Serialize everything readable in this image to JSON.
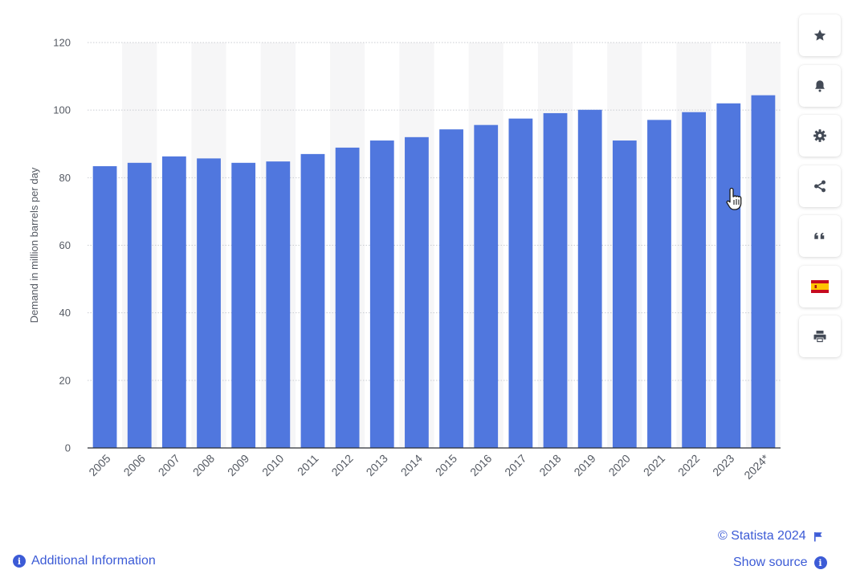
{
  "chart_data": {
    "type": "bar",
    "categories": [
      "2005",
      "2006",
      "2007",
      "2008",
      "2009",
      "2010",
      "2011",
      "2012",
      "2013",
      "2014",
      "2015",
      "2016",
      "2017",
      "2018",
      "2019",
      "2020",
      "2021",
      "2022",
      "2023",
      "2024*"
    ],
    "values": [
      83.4,
      84.4,
      86.3,
      85.7,
      84.4,
      84.8,
      87.0,
      88.9,
      91.0,
      92.0,
      94.3,
      95.6,
      97.5,
      99.1,
      100.1,
      91.0,
      97.1,
      99.4,
      102.0,
      104.4
    ],
    "title": "",
    "xlabel": "",
    "ylabel": "Demand in million barrels per day",
    "ylim": [
      0,
      120
    ],
    "yticks": [
      0,
      20,
      40,
      60,
      80,
      100,
      120
    ],
    "bar_color": "#5077de",
    "grid": true
  },
  "toolbar": {
    "buttons": [
      {
        "name": "favorite-button",
        "icon": "star-icon"
      },
      {
        "name": "notification-button",
        "icon": "bell-icon"
      },
      {
        "name": "settings-button",
        "icon": "gear-icon"
      },
      {
        "name": "share-button",
        "icon": "share-icon"
      },
      {
        "name": "cite-button",
        "icon": "quote-icon"
      },
      {
        "name": "language-button",
        "icon": "spain-flag-icon"
      },
      {
        "name": "print-button",
        "icon": "printer-icon"
      }
    ]
  },
  "footer": {
    "credit": "© Statista 2024",
    "additional_info": "Additional Information",
    "show_source": "Show source"
  },
  "colors": {
    "accent": "#3c5bd6",
    "bar": "#5077de"
  }
}
